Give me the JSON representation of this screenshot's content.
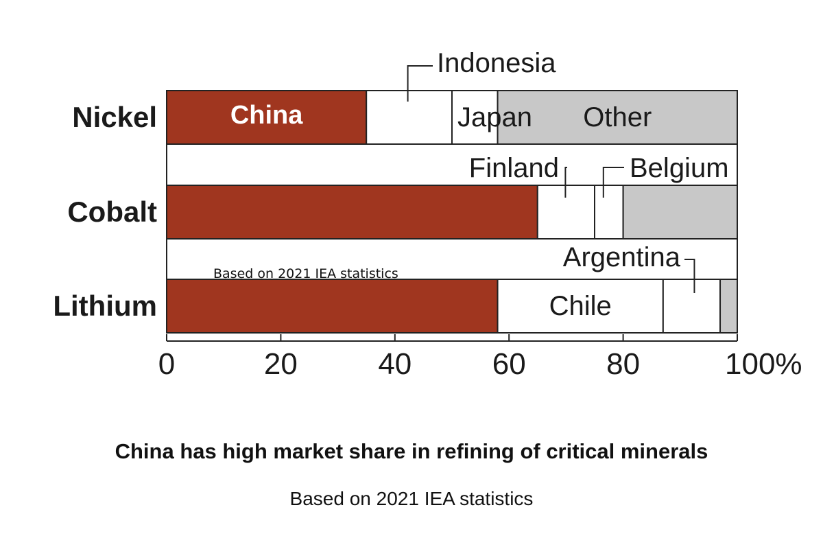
{
  "chart_data": {
    "type": "bar",
    "orientation": "horizontal",
    "stacked": true,
    "title": "China has high market share in refining of critical minerals",
    "subtitle": "Based on 2021 IEA statistics",
    "overlay_note": "Based on 2021 IEA statistics",
    "categories": [
      "Nickel",
      "Cobalt",
      "Lithium"
    ],
    "xlim": [
      0,
      100
    ],
    "xticks": [
      "0",
      "20",
      "40",
      "60",
      "80",
      "100%"
    ],
    "tick_values": [
      0,
      20,
      40,
      60,
      80,
      100
    ],
    "rows": [
      {
        "category": "Nickel",
        "segments": [
          {
            "label": "China",
            "label_inside": true,
            "value": 35,
            "color": "#a0361f"
          },
          {
            "label": "Indonesia",
            "label_inside": false,
            "value": 15,
            "color": "#ffffff"
          },
          {
            "label": "Japan",
            "label_inside": true,
            "value": 8,
            "color": "#ffffff"
          },
          {
            "label": "Other",
            "label_inside": true,
            "value": 42,
            "color": "#c8c8c8"
          }
        ]
      },
      {
        "category": "Cobalt",
        "segments": [
          {
            "label": "",
            "value": 65,
            "color": "#a0361f"
          },
          {
            "label": "Finland",
            "label_inside": false,
            "value": 10,
            "color": "#ffffff"
          },
          {
            "label": "Belgium",
            "label_inside": false,
            "value": 5,
            "color": "#ffffff"
          },
          {
            "label": "",
            "value": 20,
            "color": "#c8c8c8"
          }
        ]
      },
      {
        "category": "Lithium",
        "segments": [
          {
            "label": "",
            "value": 58,
            "color": "#a0361f"
          },
          {
            "label": "Chile",
            "label_inside": true,
            "value": 29,
            "color": "#ffffff"
          },
          {
            "label": "Argentina",
            "label_inside": false,
            "value": 10,
            "color": "#ffffff"
          },
          {
            "label": "",
            "value": 3,
            "color": "#c8c8c8"
          }
        ]
      }
    ],
    "colors": {
      "china": "#a0361f",
      "other": "#c8c8c8",
      "outline": "#222222"
    }
  }
}
